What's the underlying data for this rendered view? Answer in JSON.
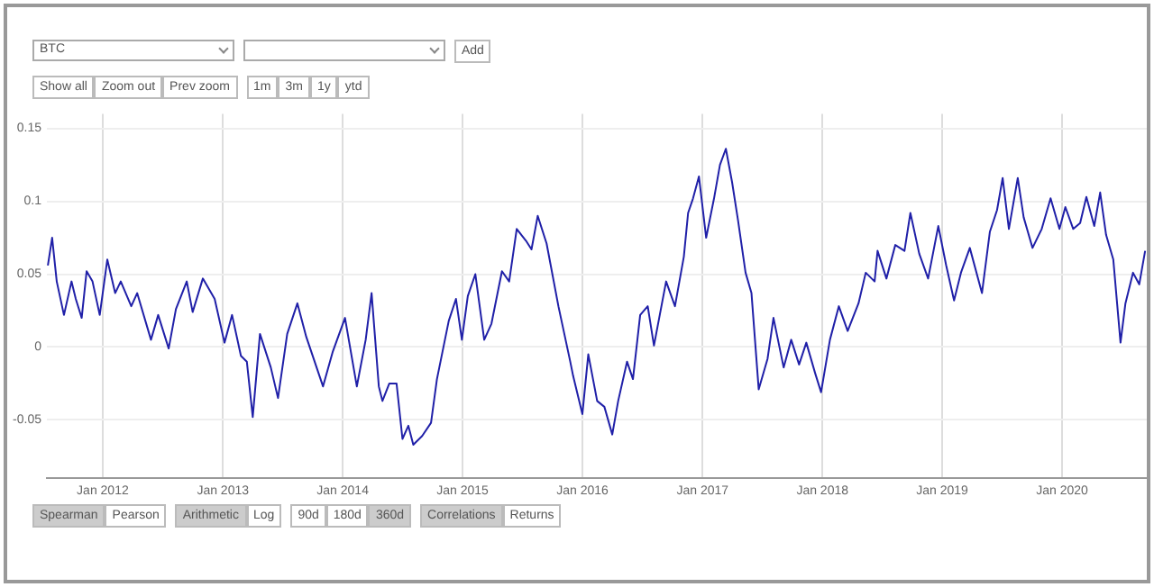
{
  "chart_data": {
    "type": "line",
    "color": "#2020a8",
    "x": [
      "2011-07-18",
      "2011-07-31",
      "2011-08-14",
      "2011-09-05",
      "2011-09-28",
      "2011-10-11",
      "2011-10-29",
      "2011-11-13",
      "2011-12-01",
      "2011-12-23",
      "2012-01-15",
      "2012-02-08",
      "2012-02-25",
      "2012-03-28",
      "2012-04-15",
      "2012-05-27",
      "2012-06-18",
      "2012-07-20",
      "2012-08-11",
      "2012-09-13",
      "2012-10-01",
      "2012-11-01",
      "2012-12-07",
      "2013-01-06",
      "2013-01-29",
      "2013-02-25",
      "2013-03-15",
      "2013-04-02",
      "2013-04-24",
      "2013-05-27",
      "2013-06-18",
      "2013-07-16",
      "2013-08-16",
      "2013-09-12",
      "2013-11-02",
      "2013-12-02",
      "2014-01-08",
      "2014-02-13",
      "2014-03-12",
      "2014-03-30",
      "2014-04-21",
      "2014-05-02",
      "2014-05-23",
      "2014-06-14",
      "2014-07-02",
      "2014-07-20",
      "2014-08-04",
      "2014-08-31",
      "2014-09-27",
      "2014-10-15",
      "2014-11-20",
      "2014-12-12",
      "2014-12-30",
      "2015-01-17",
      "2015-02-09",
      "2015-03-08",
      "2015-03-30",
      "2015-05-01",
      "2015-05-23",
      "2015-06-15",
      "2015-07-13",
      "2015-07-30",
      "2015-08-18",
      "2015-09-14",
      "2015-10-20",
      "2015-11-25",
      "2015-12-04",
      "2016-01-01",
      "2016-01-19",
      "2016-02-15",
      "2016-03-08",
      "2016-04-01",
      "2016-04-19",
      "2016-05-16",
      "2016-06-03",
      "2016-06-25",
      "2016-07-18",
      "2016-08-06",
      "2016-09-12",
      "2016-10-09",
      "2016-11-05",
      "2016-11-18",
      "2016-12-03",
      "2016-12-21",
      "2017-01-12",
      "2017-02-05",
      "2017-02-23",
      "2017-03-13",
      "2017-04-01",
      "2017-04-19",
      "2017-05-12",
      "2017-05-30",
      "2017-06-21",
      "2017-07-18",
      "2017-08-05",
      "2017-09-05",
      "2017-09-28",
      "2017-10-22",
      "2017-11-13",
      "2017-12-10",
      "2017-12-28",
      "2018-01-24",
      "2018-02-20",
      "2018-03-19",
      "2018-04-21",
      "2018-05-13",
      "2018-06-09",
      "2018-06-18",
      "2018-07-15",
      "2018-08-11",
      "2018-09-08",
      "2018-09-26",
      "2018-10-23",
      "2018-11-19",
      "2018-12-20",
      "2019-01-13",
      "2019-02-06",
      "2019-02-27",
      "2019-03-26",
      "2019-05-02",
      "2019-05-26",
      "2019-06-17",
      "2019-07-04",
      "2019-07-23",
      "2019-08-19",
      "2019-09-06",
      "2019-10-03",
      "2019-10-31",
      "2019-11-27",
      "2019-12-24",
      "2020-01-11",
      "2020-02-04",
      "2020-02-25",
      "2020-03-15",
      "2020-04-08",
      "2020-04-26",
      "2020-05-14",
      "2020-06-05",
      "2020-06-27",
      "2020-07-12",
      "2020-08-04",
      "2020-08-23",
      "2020-09-10"
    ],
    "values": [
      0.056,
      0.075,
      0.045,
      0.022,
      0.045,
      0.033,
      0.02,
      0.052,
      0.045,
      0.022,
      0.06,
      0.037,
      0.045,
      0.028,
      0.037,
      0.005,
      0.022,
      -0.001,
      0.026,
      0.045,
      0.024,
      0.047,
      0.033,
      0.003,
      0.022,
      -0.006,
      -0.01,
      -0.048,
      0.009,
      -0.014,
      -0.035,
      0.009,
      0.03,
      0.007,
      -0.027,
      -0.003,
      0.02,
      -0.027,
      0.005,
      0.037,
      -0.027,
      -0.037,
      -0.025,
      -0.025,
      -0.063,
      -0.054,
      -0.067,
      -0.061,
      -0.052,
      -0.022,
      0.018,
      0.033,
      0.005,
      0.035,
      0.05,
      0.005,
      0.016,
      0.052,
      0.045,
      0.081,
      0.073,
      0.067,
      0.09,
      0.071,
      0.028,
      -0.01,
      -0.02,
      -0.046,
      -0.005,
      -0.037,
      -0.041,
      -0.06,
      -0.037,
      -0.01,
      -0.022,
      0.022,
      0.028,
      0.001,
      0.045,
      0.028,
      0.062,
      0.092,
      0.102,
      0.117,
      0.075,
      0.102,
      0.125,
      0.136,
      0.113,
      0.087,
      0.051,
      0.037,
      -0.029,
      -0.008,
      0.02,
      -0.014,
      0.005,
      -0.012,
      0.003,
      -0.018,
      -0.031,
      0.005,
      0.028,
      0.011,
      0.03,
      0.051,
      0.045,
      0.066,
      0.047,
      0.07,
      0.066,
      0.092,
      0.064,
      0.047,
      0.083,
      0.056,
      0.032,
      0.051,
      0.068,
      0.037,
      0.079,
      0.094,
      0.116,
      0.081,
      0.116,
      0.089,
      0.068,
      0.081,
      0.102,
      0.081,
      0.096,
      0.081,
      0.085,
      0.103,
      0.083,
      0.106,
      0.077,
      0.06,
      0.003,
      0.03,
      0.051,
      0.043,
      0.066
    ],
    "xlim": [
      "2011-07-15",
      "2020-09-15"
    ],
    "xticks": [
      {
        "value": "2012-01-01",
        "label": "Jan 2012"
      },
      {
        "value": "2013-01-01",
        "label": "Jan 2013"
      },
      {
        "value": "2014-01-01",
        "label": "Jan 2014"
      },
      {
        "value": "2015-01-01",
        "label": "Jan 2015"
      },
      {
        "value": "2016-01-01",
        "label": "Jan 2016"
      },
      {
        "value": "2017-01-01",
        "label": "Jan 2017"
      },
      {
        "value": "2018-01-01",
        "label": "Jan 2018"
      },
      {
        "value": "2019-01-01",
        "label": "Jan 2019"
      },
      {
        "value": "2020-01-01",
        "label": "Jan 2020"
      }
    ],
    "ylim": [
      -0.09,
      0.16
    ],
    "yticks": [
      -0.05,
      0,
      0.05,
      0.1,
      0.15
    ],
    "grid": true,
    "annotations": [
      "BTC",
      "Add",
      "Show all",
      "Zoom out",
      "Prev zoom",
      "1m",
      "3m",
      "1y",
      "ytd",
      "Spearman",
      "Pearson",
      "Arithmetic",
      "Log",
      "90d",
      "180d",
      "360d",
      "Correlations",
      "Returns"
    ]
  }
}
